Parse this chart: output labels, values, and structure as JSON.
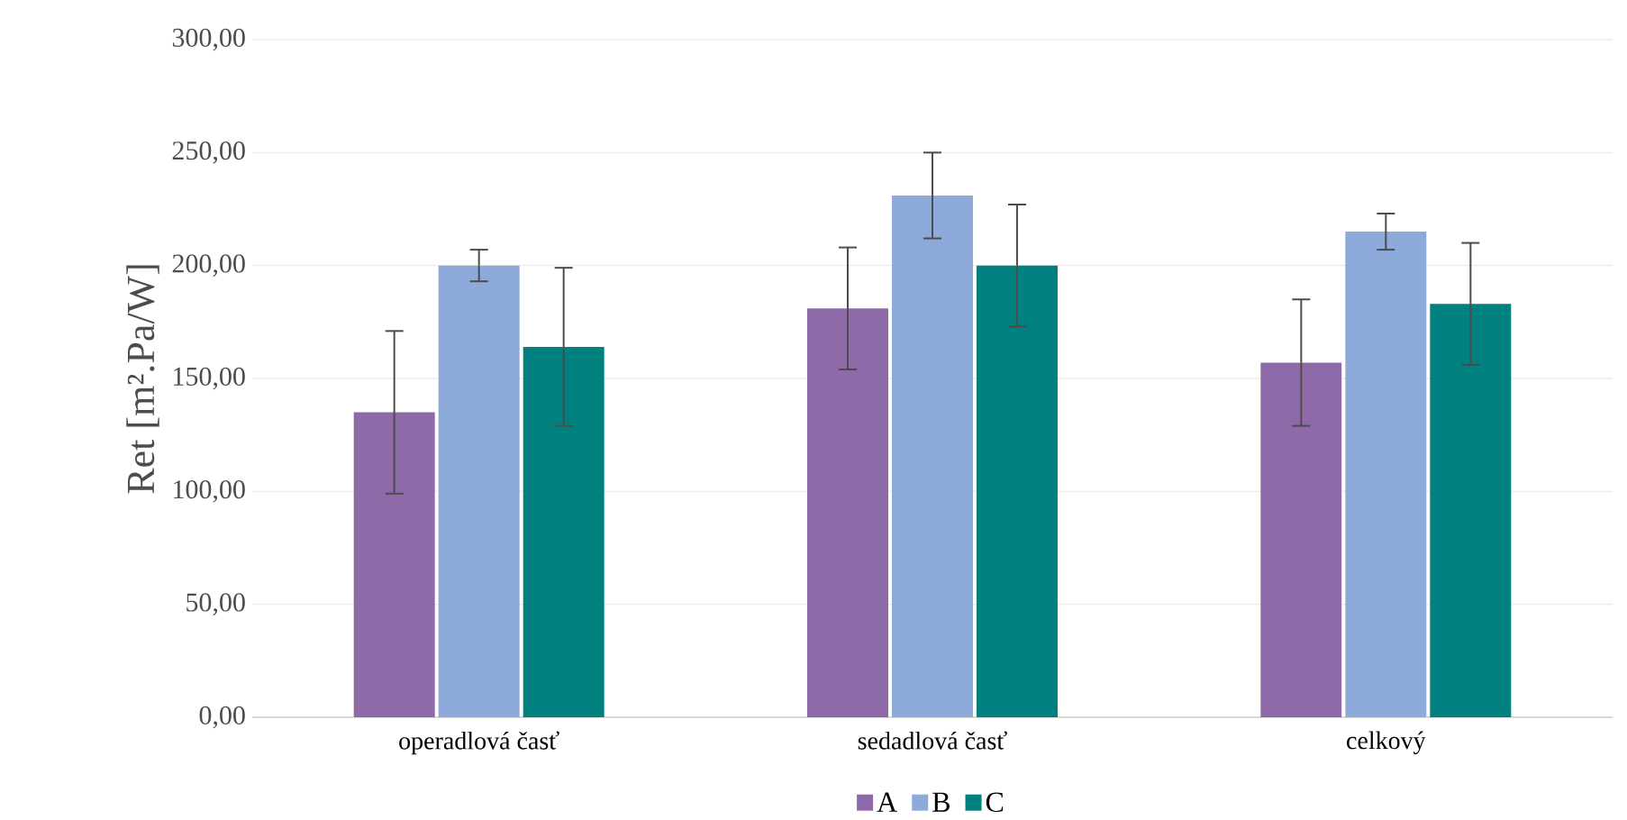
{
  "chart_data": {
    "type": "bar",
    "ylabel": "Ret [m².Pa/W]",
    "categories": [
      "operadlová časť",
      "sedadlová časť",
      "celkový"
    ],
    "series": [
      {
        "name": "A",
        "color": "#8e6aa8",
        "values": [
          135,
          181,
          157
        ],
        "errors": [
          36,
          27,
          28
        ]
      },
      {
        "name": "B",
        "color": "#8eaadb",
        "values": [
          200,
          231,
          215
        ],
        "errors": [
          7,
          19,
          8
        ]
      },
      {
        "name": "C",
        "color": "#00807f",
        "values": [
          164,
          200,
          183
        ],
        "errors": [
          35,
          27,
          27
        ]
      }
    ],
    "ylim": [
      0,
      300
    ],
    "yticks": [
      {
        "value": 0,
        "label": "0,00"
      },
      {
        "value": 50,
        "label": "50,00"
      },
      {
        "value": 100,
        "label": "100,00"
      },
      {
        "value": 150,
        "label": "150,00"
      },
      {
        "value": 200,
        "label": "200,00"
      },
      {
        "value": 250,
        "label": "250,00"
      },
      {
        "value": 300,
        "label": "300,00"
      }
    ],
    "grid": "y",
    "legend": "bottom"
  }
}
